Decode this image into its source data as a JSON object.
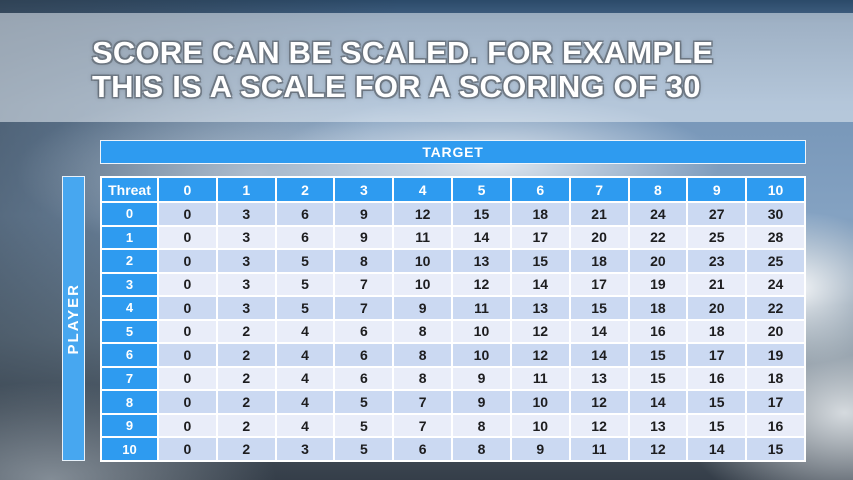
{
  "slide": {
    "title_line1": "SCORE CAN BE SCALED. FOR EXAMPLE",
    "title_line2": "THIS IS A SCALE FOR A SCORING OF 30"
  },
  "table": {
    "target_label": "TARGET",
    "player_label": "PLAYER",
    "threat_label": "Threat",
    "column_headers": [
      "0",
      "1",
      "2",
      "3",
      "4",
      "5",
      "6",
      "7",
      "8",
      "9",
      "10"
    ],
    "rows": [
      {
        "header": "0",
        "values": [
          0,
          3,
          6,
          9,
          12,
          15,
          18,
          21,
          24,
          27,
          30
        ]
      },
      {
        "header": "1",
        "values": [
          0,
          3,
          6,
          9,
          11,
          14,
          17,
          20,
          22,
          25,
          28
        ]
      },
      {
        "header": "2",
        "values": [
          0,
          3,
          5,
          8,
          10,
          13,
          15,
          18,
          20,
          23,
          25
        ]
      },
      {
        "header": "3",
        "values": [
          0,
          3,
          5,
          7,
          10,
          12,
          14,
          17,
          19,
          21,
          24
        ]
      },
      {
        "header": "4",
        "values": [
          0,
          3,
          5,
          7,
          9,
          11,
          13,
          15,
          18,
          20,
          22
        ]
      },
      {
        "header": "5",
        "values": [
          0,
          2,
          4,
          6,
          8,
          10,
          12,
          14,
          16,
          18,
          20
        ]
      },
      {
        "header": "6",
        "values": [
          0,
          2,
          4,
          6,
          8,
          10,
          12,
          14,
          15,
          17,
          19
        ]
      },
      {
        "header": "7",
        "values": [
          0,
          2,
          4,
          6,
          8,
          9,
          11,
          13,
          15,
          16,
          18
        ]
      },
      {
        "header": "8",
        "values": [
          0,
          2,
          4,
          5,
          7,
          9,
          10,
          12,
          14,
          15,
          17
        ]
      },
      {
        "header": "9",
        "values": [
          0,
          2,
          4,
          5,
          7,
          8,
          10,
          12,
          13,
          15,
          16
        ]
      },
      {
        "header": "10",
        "values": [
          0,
          2,
          3,
          5,
          6,
          8,
          9,
          11,
          12,
          14,
          15
        ]
      }
    ]
  },
  "colors": {
    "header_blue": "#2e9bf0",
    "player_bar_blue": "#47a7f0",
    "row_band_dark": "#cbd9f2",
    "row_band_light": "#e9edf9",
    "cell_border": "#ffffff",
    "title_text": "#ffffff"
  }
}
